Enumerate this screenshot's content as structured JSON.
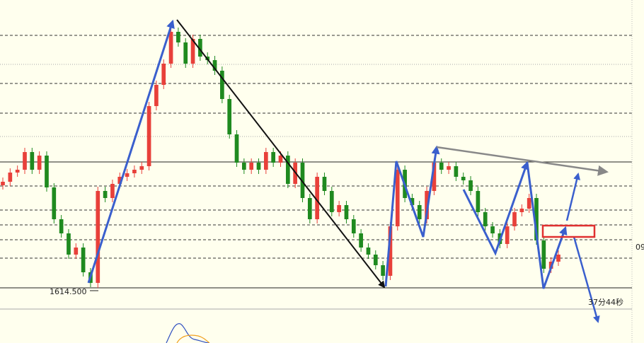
{
  "chart_data": {
    "type": "candlestick",
    "ylim": [
      1611.5,
      1655.2
    ],
    "up_color": "#e8403a",
    "down_color": "#1f8a1f",
    "series": {
      "open": [
        1629.0,
        1629.5,
        1630.8,
        1631.2,
        1633.7,
        1631.2,
        1633.2,
        1628.7,
        1624.2,
        1622.2,
        1619.2,
        1620.2,
        1616.7,
        1615.2,
        1628.2,
        1627.2,
        1629.2,
        1630.2,
        1630.7,
        1631.2,
        1631.7,
        1640.2,
        1643.2,
        1646.2,
        1650.7,
        1649.2,
        1646.2,
        1649.7,
        1647.2,
        1646.7,
        1645.2,
        1641.2,
        1636.2,
        1632.2,
        1631.2,
        1632.2,
        1631.2,
        1633.7,
        1632.2,
        1633.2,
        1629.2,
        1632.2,
        1627.2,
        1624.2,
        1630.2,
        1628.2,
        1625.2,
        1626.2,
        1624.2,
        1622.2,
        1620.2,
        1619.2,
        1617.7,
        1616.2,
        1623.2,
        1631.2,
        1627.2,
        1626.2,
        1624.2,
        1628.2,
        1632.2,
        1631.2,
        1631.7,
        1630.2,
        1629.7,
        1628.2,
        1625.2,
        1623.2,
        1622.2,
        1620.7,
        1623.2,
        1625.2,
        1625.7,
        1627.2,
        1621.2,
        1617.2,
        1618.2
      ],
      "high": [
        1630.1,
        1631.4,
        1631.8,
        1634.3,
        1634.3,
        1633.8,
        1633.8,
        1629.3,
        1624.8,
        1622.8,
        1620.8,
        1620.8,
        1617.3,
        1628.8,
        1628.8,
        1629.8,
        1630.8,
        1631.3,
        1631.8,
        1632.3,
        1640.8,
        1643.8,
        1646.8,
        1651.3,
        1651.3,
        1649.8,
        1650.3,
        1650.3,
        1647.8,
        1647.3,
        1645.8,
        1641.8,
        1636.8,
        1632.8,
        1632.8,
        1632.8,
        1634.3,
        1634.3,
        1633.8,
        1633.8,
        1632.8,
        1632.8,
        1627.8,
        1630.8,
        1630.8,
        1628.8,
        1626.8,
        1626.8,
        1624.8,
        1622.8,
        1620.8,
        1619.8,
        1618.3,
        1623.8,
        1631.8,
        1631.8,
        1627.8,
        1626.8,
        1628.8,
        1632.8,
        1632.8,
        1632.3,
        1632.3,
        1630.8,
        1630.3,
        1628.8,
        1625.8,
        1623.8,
        1622.8,
        1623.8,
        1625.8,
        1626.3,
        1627.8,
        1627.8,
        1621.8,
        1618.8,
        1619.8
      ],
      "low": [
        1628.4,
        1628.9,
        1630.2,
        1630.6,
        1630.6,
        1630.6,
        1628.1,
        1623.6,
        1621.6,
        1618.6,
        1618.6,
        1616.1,
        1614.6,
        1614.5,
        1626.6,
        1626.6,
        1628.6,
        1629.6,
        1630.1,
        1630.6,
        1631.1,
        1639.6,
        1642.6,
        1645.6,
        1648.6,
        1645.6,
        1645.6,
        1646.6,
        1646.1,
        1644.6,
        1640.6,
        1635.6,
        1631.6,
        1630.6,
        1630.6,
        1630.6,
        1630.6,
        1631.6,
        1631.6,
        1628.6,
        1628.6,
        1626.6,
        1623.6,
        1623.6,
        1627.6,
        1624.6,
        1624.6,
        1623.6,
        1621.6,
        1619.6,
        1618.6,
        1617.1,
        1615.6,
        1615.6,
        1622.6,
        1626.6,
        1625.6,
        1623.6,
        1623.6,
        1627.6,
        1630.6,
        1630.6,
        1629.6,
        1629.1,
        1627.6,
        1624.6,
        1622.6,
        1621.6,
        1620.1,
        1620.1,
        1622.6,
        1624.6,
        1625.1,
        1620.6,
        1616.6,
        1616.6,
        1617.6
      ],
      "close": [
        1629.5,
        1630.8,
        1631.2,
        1633.7,
        1631.2,
        1633.2,
        1628.7,
        1624.2,
        1622.2,
        1619.2,
        1620.2,
        1616.7,
        1615.2,
        1628.2,
        1627.2,
        1629.2,
        1630.2,
        1630.7,
        1631.2,
        1631.7,
        1640.2,
        1643.2,
        1646.2,
        1650.7,
        1649.2,
        1646.2,
        1649.7,
        1647.2,
        1646.7,
        1645.2,
        1641.2,
        1636.2,
        1632.2,
        1631.2,
        1632.2,
        1631.2,
        1633.7,
        1632.2,
        1633.2,
        1629.2,
        1632.2,
        1627.2,
        1624.2,
        1630.2,
        1628.2,
        1625.2,
        1626.2,
        1624.2,
        1622.2,
        1620.2,
        1619.2,
        1617.7,
        1616.2,
        1623.2,
        1631.2,
        1627.2,
        1626.2,
        1624.2,
        1628.2,
        1632.2,
        1631.2,
        1631.7,
        1630.2,
        1629.7,
        1628.2,
        1625.2,
        1623.2,
        1622.2,
        1620.7,
        1623.2,
        1625.2,
        1625.7,
        1627.2,
        1621.2,
        1617.2,
        1618.2,
        1619.2
      ]
    },
    "levels": [
      {
        "value": 1650.2,
        "style": "dashed"
      },
      {
        "value": 1646.1,
        "style": "dotted"
      },
      {
        "value": 1643.4,
        "style": "dashed"
      },
      {
        "value": 1639.2,
        "style": "dashed"
      },
      {
        "value": 1635.9,
        "style": "dotted"
      },
      {
        "value": 1632.3,
        "style": "solid"
      },
      {
        "value": 1628.9,
        "style": "dashed"
      },
      {
        "value": 1625.5,
        "style": "dashed"
      },
      {
        "value": 1623.4,
        "style": "dashed"
      },
      {
        "value": 1621.3,
        "style": "dashed"
      },
      {
        "value": 1618.7,
        "style": "dashed"
      },
      {
        "value": 1614.5,
        "style": "solid"
      }
    ],
    "low_label": {
      "value": 1614.5,
      "label": "1614.500"
    },
    "timer": "37分44秒",
    "edge_price": "09"
  }
}
